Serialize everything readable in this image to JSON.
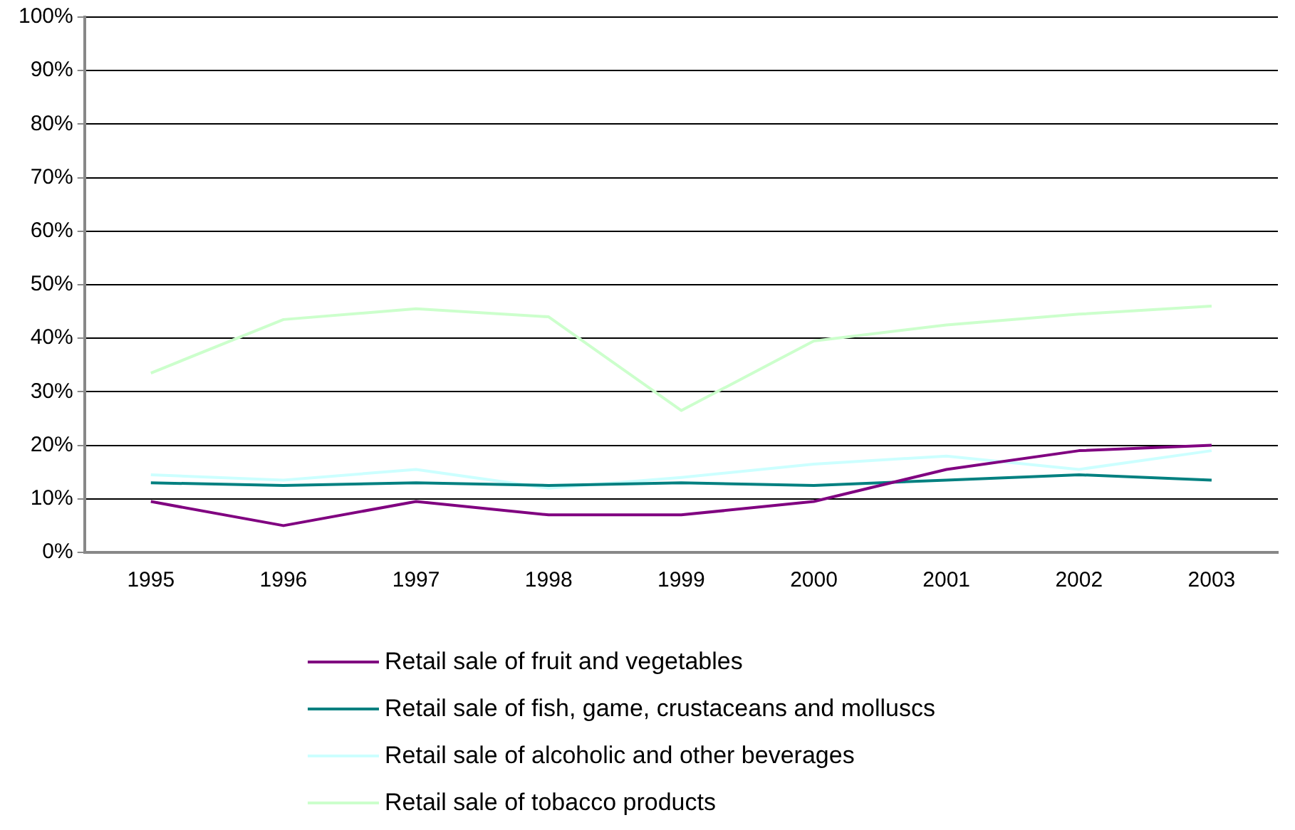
{
  "chart_data": {
    "type": "line",
    "categories": [
      "1995",
      "1996",
      "1997",
      "1998",
      "1999",
      "2000",
      "2001",
      "2002",
      "2003"
    ],
    "ylim": [
      0,
      100
    ],
    "yticks": [
      {
        "value": 0,
        "label": "0%"
      },
      {
        "value": 10,
        "label": "10%"
      },
      {
        "value": 20,
        "label": "20%"
      },
      {
        "value": 30,
        "label": "30%"
      },
      {
        "value": 40,
        "label": "40%"
      },
      {
        "value": 50,
        "label": "50%"
      },
      {
        "value": 60,
        "label": "60%"
      },
      {
        "value": 70,
        "label": "70%"
      },
      {
        "value": 80,
        "label": "80%"
      },
      {
        "value": 90,
        "label": "90%"
      },
      {
        "value": 100,
        "label": "100%"
      }
    ],
    "grid": "y",
    "legend": "bottom",
    "marker": "none",
    "line_style": "solid",
    "series": [
      {
        "name": "Retail sale of fruit and vegetables",
        "color": "#800080",
        "values": [
          9.5,
          5,
          9.5,
          7,
          7,
          9.5,
          15.5,
          19,
          20
        ]
      },
      {
        "name": "Retail sale of fish, game, crustaceans and molluscs",
        "color": "#008080",
        "values": [
          13,
          12.5,
          13,
          12.5,
          13,
          12.5,
          13.5,
          14.5,
          13.5
        ]
      },
      {
        "name": "Retail sale of alcoholic and other beverages",
        "color": "#ccffff",
        "values": [
          14.5,
          13.5,
          15.5,
          12,
          14,
          16.5,
          18,
          15.5,
          19
        ]
      },
      {
        "name": "Retail sale of tobacco products",
        "color": "#ccffcc",
        "values": [
          33.5,
          43.5,
          45.5,
          44,
          26.5,
          39.5,
          42.5,
          44.5,
          46
        ]
      }
    ]
  }
}
